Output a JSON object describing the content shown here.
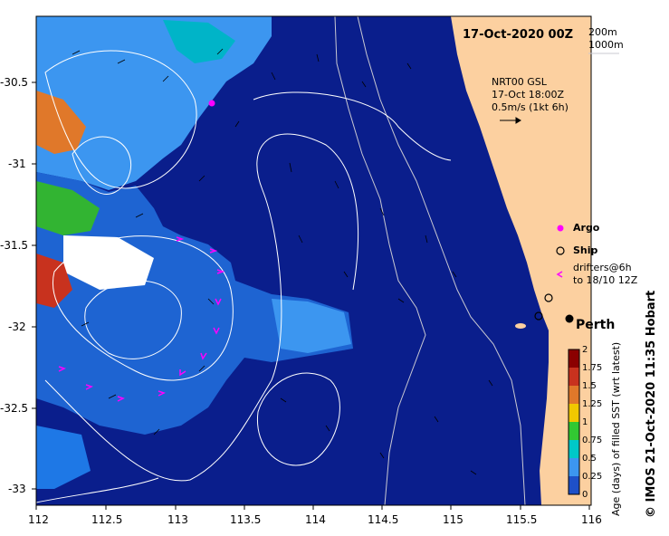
{
  "title": "17-Oct-2020 00Z",
  "isobaths": [
    "200m",
    "1000m"
  ],
  "gsl": {
    "line1": "NRT00 GSL",
    "line2": "17-Oct 18:00Z",
    "line3": "0.5m/s (1kt 6h)"
  },
  "legend": {
    "argo": "Argo",
    "ship": "Ship",
    "drifters1": "drifters@6h",
    "drifters2": "to 18/10 12Z"
  },
  "place": "Perth",
  "credit": "© IMOS 21-Oct-2020 11:35 Hobart",
  "colorbar": {
    "title": "Age (days) of filled SST (wrt latest)",
    "ticks": [
      "2",
      "1.75",
      "1.5",
      "1.25",
      "1",
      "0.75",
      "0.5",
      "0.25",
      "0"
    ],
    "colors": [
      "#8b0000",
      "#c8321e",
      "#e0782a",
      "#f0c800",
      "#32c832",
      "#00c8c8",
      "#3c96f0",
      "#1e50c8",
      "#0a1e8c"
    ]
  },
  "axes": {
    "x_ticks": [
      "112",
      "112.5",
      "113",
      "113.5",
      "114",
      "114.5",
      "115",
      "115.5",
      "116"
    ],
    "y_ticks": [
      "-30.5",
      "-31",
      "-31.5",
      "-32",
      "-32.5",
      "-33"
    ]
  },
  "colors": {
    "ocean": "#0a1e8c",
    "land": "#fcd0a0",
    "argo": "#ff00ff",
    "drifter": "#ff00ff"
  },
  "icons": [
    "argo-marker-icon",
    "ship-marker-icon",
    "drifter-marker-icon",
    "city-dot-icon"
  ]
}
